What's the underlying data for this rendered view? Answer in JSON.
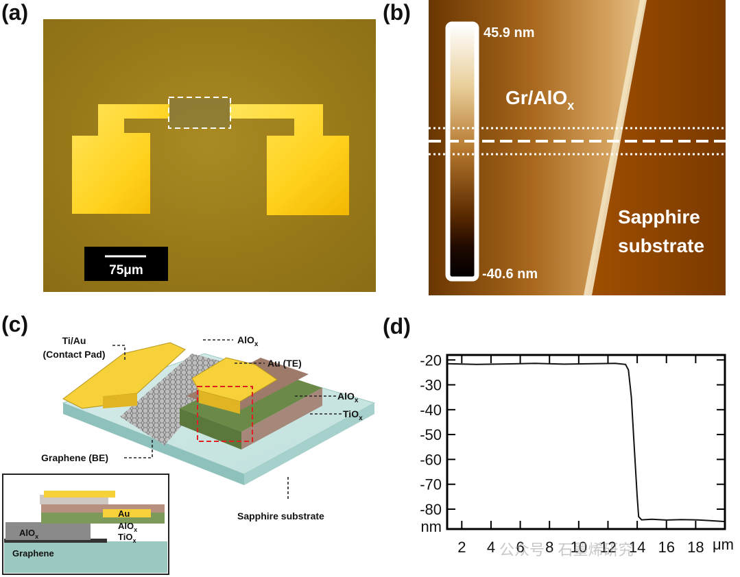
{
  "panel_labels": {
    "a": "(a)",
    "b": "(b)",
    "c": "(c)",
    "d": "(d)"
  },
  "panel_a": {
    "scale_bar": "75μm"
  },
  "panel_b": {
    "colorbar_max": "45.9 nm",
    "colorbar_min": "-40.6 nm",
    "region_top": "Gr/AlO",
    "region_top_sub": "x",
    "region_bottom_1": "Sapphire",
    "region_bottom_2": "substrate"
  },
  "panel_c": {
    "label_contact_1": "Ti/Au",
    "label_contact_2": "(Contact Pad)",
    "label_alox_top": "AlO",
    "label_alox_top_sub": "x",
    "label_au_te": "Au (TE)",
    "label_alox_right": "AlO",
    "label_alox_right_sub": "x",
    "label_tiox_right": "TiO",
    "label_tiox_right_sub": "x",
    "label_graphene": "Graphene (BE)",
    "label_sapphire": "Sapphire substrate",
    "inset_au": "Au",
    "inset_alox": "AlO",
    "inset_alox_sub": "x",
    "inset_tiox": "TiO",
    "inset_tiox_sub": "x",
    "inset_alox_left": "AlO",
    "inset_alox_left_sub": "x",
    "inset_graphene": "Graphene"
  },
  "chart_data": {
    "type": "line",
    "title": "",
    "xlabel": "μm",
    "ylabel": "nm",
    "xlim": [
      1,
      20
    ],
    "ylim": [
      -88,
      -18
    ],
    "xticks": [
      2,
      4,
      6,
      8,
      10,
      12,
      14,
      16,
      18
    ],
    "yticks": [
      -20,
      -30,
      -40,
      -50,
      -60,
      -70,
      -80
    ],
    "series": [
      {
        "x": [
          1.0,
          3.0,
          5.0,
          7.0,
          9.0,
          11.0,
          12.5,
          13.2,
          13.4,
          13.6,
          13.8,
          14.0,
          14.1,
          14.3,
          15.0,
          16.0,
          17.0,
          18.0,
          19.0,
          20.0
        ],
        "y": [
          -21.5,
          -21.8,
          -21.6,
          -21.4,
          -21.7,
          -21.5,
          -21.4,
          -21.8,
          -24,
          -35,
          -55,
          -75,
          -83,
          -84.3,
          -84.1,
          -84.4,
          -84.2,
          -84.3,
          -84.6,
          -85.0
        ]
      }
    ]
  },
  "watermark": "公众号 · 石墨烯研究"
}
